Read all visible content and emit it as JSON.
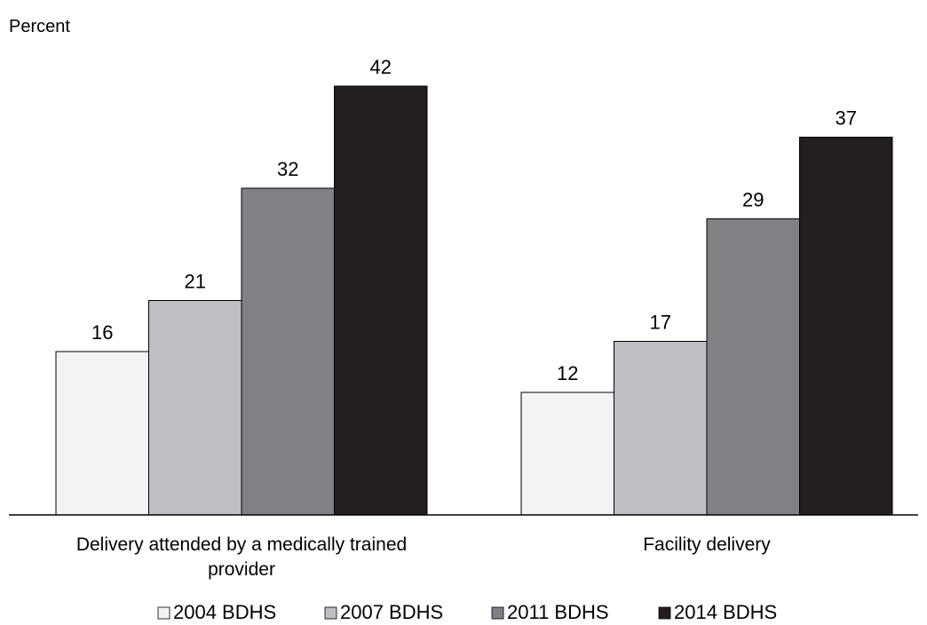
{
  "chart_data": {
    "type": "bar",
    "title": "",
    "ylabel": "Percent",
    "xlabel": "",
    "ylim": [
      0,
      46
    ],
    "grid": false,
    "legend_position": "bottom",
    "categories": [
      [
        "Delivery attended by a medically trained",
        "provider"
      ],
      [
        "Facility delivery"
      ]
    ],
    "series": [
      {
        "name": "2004 BDHS",
        "color": "#f2f3f2",
        "values": [
          16,
          12
        ]
      },
      {
        "name": "2007 BDHS",
        "color": "#bfbfc3",
        "values": [
          21,
          17
        ]
      },
      {
        "name": "2011 BDHS",
        "color": "#808085",
        "values": [
          32,
          29
        ]
      },
      {
        "name": "2014 BDHS",
        "color": "#231f20",
        "values": [
          42,
          37
        ]
      }
    ]
  }
}
